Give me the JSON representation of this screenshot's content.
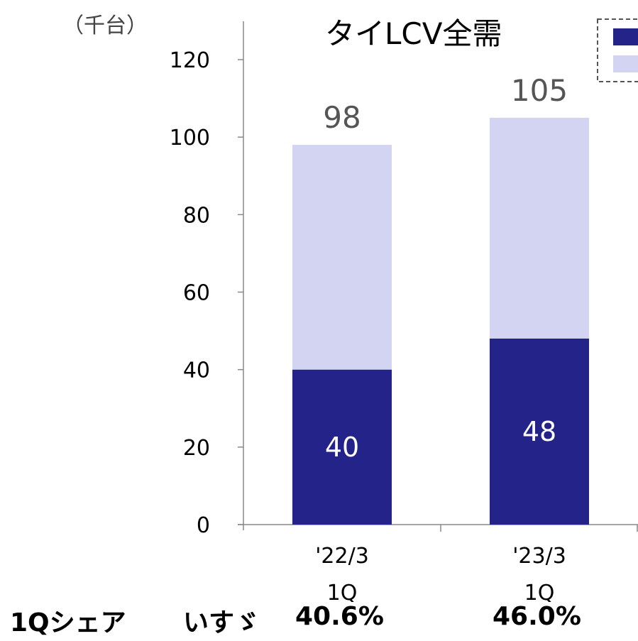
{
  "chart_data": {
    "type": "bar",
    "stacked": true,
    "title": "タイLCV全需",
    "unit": "（千台）",
    "categories": [
      [
        "'22/3",
        "1Q"
      ],
      [
        "'23/3",
        "1Q"
      ]
    ],
    "series": [
      {
        "values": [
          40,
          48
        ],
        "color": "#23238a",
        "show_labels": true
      },
      {
        "values": [
          58,
          57
        ],
        "color": "#d3d3f2",
        "show_labels": false
      }
    ],
    "totals": [
      "98",
      "105"
    ],
    "segment_labels": [
      "40",
      "48"
    ],
    "ylim": [
      0,
      120
    ],
    "yticks": [
      0,
      20,
      40,
      60,
      80,
      100,
      120
    ],
    "legend_position": "top-right"
  },
  "share_row": {
    "label": "1Qシェア",
    "brand": "いすゞ",
    "values": [
      "40.6%",
      "46.0%"
    ]
  }
}
